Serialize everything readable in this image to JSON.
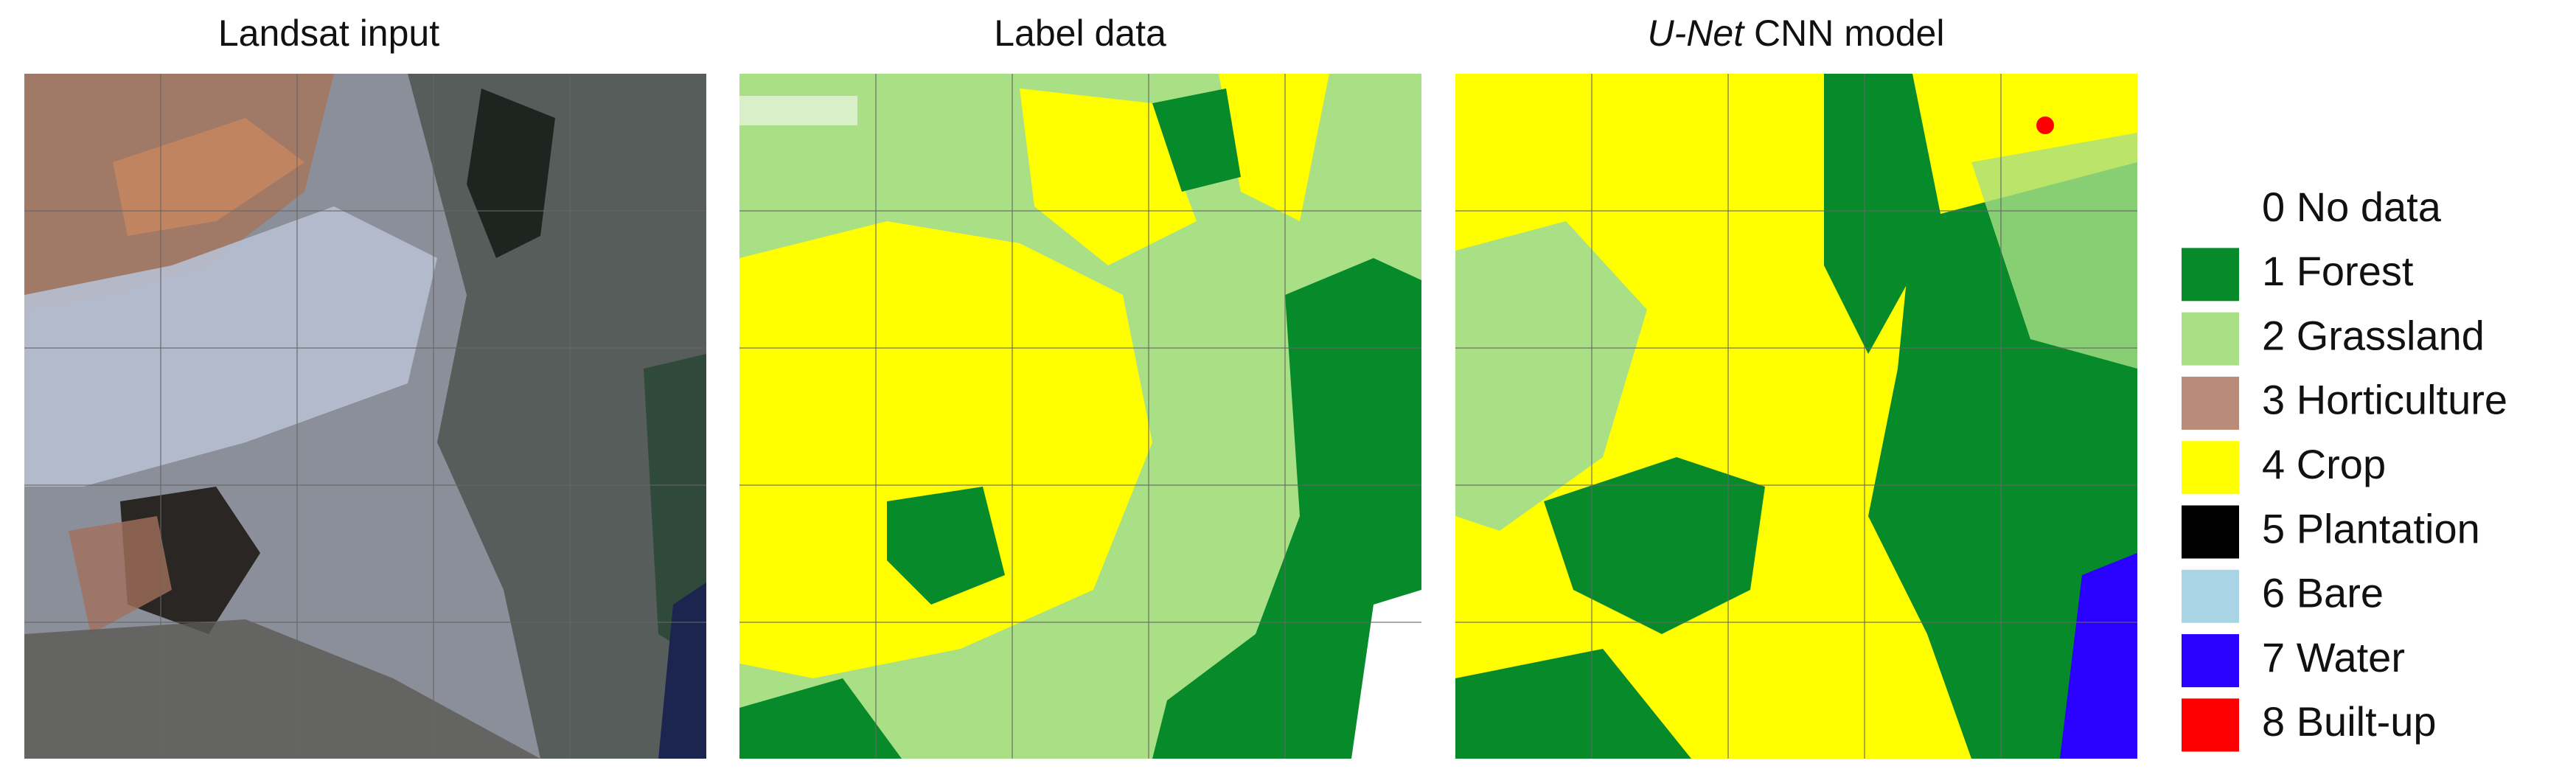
{
  "panels": [
    {
      "title": "Landsat input"
    },
    {
      "title": "Label data"
    },
    {
      "title_italic": "U-Net",
      "title": "CNN model"
    }
  ],
  "legend": [
    {
      "label": "0 No data",
      "color": "#ffffff"
    },
    {
      "label": "1 Forest",
      "color": "#078a2a"
    },
    {
      "label": "2 Grassland",
      "color": "#a9df85"
    },
    {
      "label": "3 Horticulture",
      "color": "#b98b78"
    },
    {
      "label": "4 Crop",
      "color": "#ffff00"
    },
    {
      "label": "5 Plantation",
      "color": "#000000"
    },
    {
      "label": "6 Bare",
      "color": "#a8d4e6"
    },
    {
      "label": "7 Water",
      "color": "#2a00ff"
    },
    {
      "label": "8 Built-up",
      "color": "#ff0000"
    }
  ]
}
